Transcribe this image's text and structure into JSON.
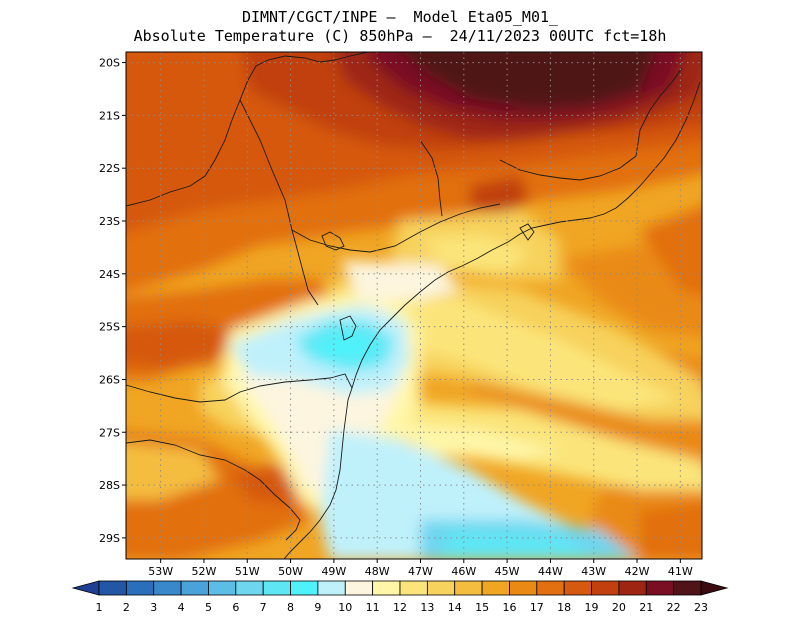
{
  "header": {
    "line1": "DIMNT/CGCT/INPE –  Model Eta05_M01_",
    "line2": "Absolute Temperature (C) 850hPa –  24/11/2023 00UTC fct=18h"
  },
  "map": {
    "lat_labels": [
      "20S",
      "21S",
      "22S",
      "23S",
      "24S",
      "25S",
      "26S",
      "27S",
      "28S",
      "29S"
    ],
    "lon_labels": [
      "53W",
      "52W",
      "51W",
      "50W",
      "49W",
      "48W",
      "47W",
      "46W",
      "45W",
      "44W",
      "43W",
      "42W",
      "41W"
    ],
    "lat_range": [
      -29.4,
      -19.8
    ],
    "lon_range": [
      -53.8,
      -40.5
    ],
    "grid": "dotted"
  },
  "colorbar": {
    "labels": [
      "1",
      "2",
      "3",
      "4",
      "5",
      "6",
      "7",
      "8",
      "9",
      "10",
      "11",
      "12",
      "13",
      "14",
      "15",
      "16",
      "17",
      "18",
      "19",
      "20",
      "21",
      "22",
      "23"
    ],
    "colors": [
      "#1f3f93",
      "#2357a6",
      "#2a6fbc",
      "#3a88cc",
      "#4aa2da",
      "#5cbde6",
      "#6ed6ef",
      "#5ee6f5",
      "#4ff2fa",
      "#bff1fb",
      "#fdf5df",
      "#fff6a8",
      "#fbe57a",
      "#f7d25c",
      "#f4bd3f",
      "#f0a523",
      "#ea8a14",
      "#e27010",
      "#d5590e",
      "#c1400d",
      "#9e2512",
      "#7a0f24",
      "#4f1318",
      "#3a0c12"
    ]
  }
}
